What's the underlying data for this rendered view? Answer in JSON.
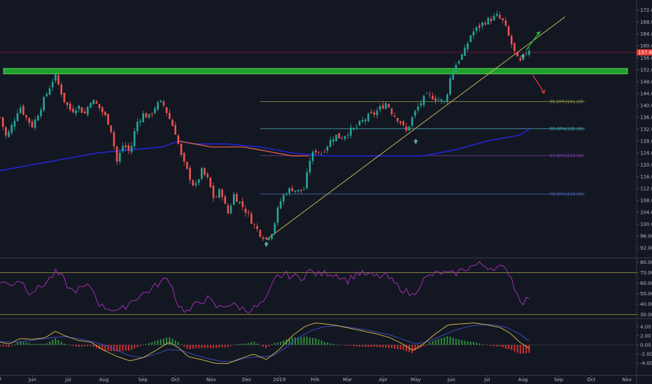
{
  "chart_data": {
    "type": "candlestick",
    "main_panel": {
      "price_ticks": [
        172.0,
        168.0,
        164.0,
        160.0,
        156.0,
        152.0,
        148.0,
        144.0,
        140.0,
        136.0,
        132.0,
        128.0,
        124.0,
        120.0,
        116.0,
        112.0,
        108.0,
        104.0,
        100.0,
        96.0,
        92.0
      ],
      "ylim": [
        89.0,
        174.5
      ],
      "last_price": "157.83",
      "last_price_value": 157.83,
      "support_zone": {
        "low": 150.6,
        "high": 152.4
      },
      "fib_levels": [
        {
          "label": "38.20%(141.23)",
          "value": 141.23,
          "color": "#9c9c4f"
        },
        {
          "label": "50.00%(132.16)",
          "value": 132.16,
          "color": "#4fb6c2"
        },
        {
          "label": "61.80%(123.08)",
          "value": 123.08,
          "color": "#7a3fb0"
        },
        {
          "label": "78.60%(110.16)",
          "value": 110.16,
          "color": "#4a64b8"
        }
      ],
      "trendline": {
        "start": {
          "t": 82,
          "price": 94.8
        },
        "end": {
          "t": 174,
          "price": 169.8
        }
      },
      "price_series": [
        [
          0,
          136
        ],
        [
          2,
          129
        ],
        [
          4,
          134
        ],
        [
          6,
          140
        ],
        [
          8,
          136
        ],
        [
          10,
          133
        ],
        [
          12,
          138
        ],
        [
          14,
          143
        ],
        [
          16,
          148
        ],
        [
          17,
          150
        ],
        [
          18,
          147
        ],
        [
          20,
          141
        ],
        [
          22,
          138
        ],
        [
          24,
          140
        ],
        [
          26,
          137
        ],
        [
          28,
          142
        ],
        [
          30,
          140
        ],
        [
          32,
          137
        ],
        [
          34,
          133
        ],
        [
          36,
          121
        ],
        [
          38,
          127
        ],
        [
          40,
          124
        ],
        [
          42,
          134
        ],
        [
          44,
          137
        ],
        [
          46,
          136
        ],
        [
          48,
          140
        ],
        [
          50,
          141
        ],
        [
          52,
          136
        ],
        [
          54,
          131
        ],
        [
          56,
          122
        ],
        [
          58,
          117
        ],
        [
          60,
          112
        ],
        [
          62,
          118
        ],
        [
          64,
          115
        ],
        [
          66,
          108
        ],
        [
          68,
          112
        ],
        [
          70,
          103
        ],
        [
          72,
          110
        ],
        [
          74,
          107
        ],
        [
          76,
          104
        ],
        [
          78,
          100
        ],
        [
          80,
          97
        ],
        [
          82,
          95
        ],
        [
          84,
          98
        ],
        [
          86,
          107
        ],
        [
          88,
          111
        ],
        [
          90,
          112
        ],
        [
          92,
          111
        ],
        [
          94,
          112
        ],
        [
          95,
          121
        ],
        [
          97,
          125
        ],
        [
          99,
          124
        ],
        [
          101,
          127
        ],
        [
          103,
          130
        ],
        [
          105,
          129
        ],
        [
          107,
          131
        ],
        [
          109,
          132
        ],
        [
          111,
          134
        ],
        [
          113,
          136
        ],
        [
          115,
          137
        ],
        [
          117,
          139
        ],
        [
          119,
          141
        ],
        [
          121,
          137
        ],
        [
          123,
          135
        ],
        [
          125,
          131
        ],
        [
          127,
          136
        ],
        [
          129,
          140
        ],
        [
          131,
          143
        ],
        [
          133,
          143
        ],
        [
          135,
          142
        ],
        [
          137,
          141
        ],
        [
          139,
          151
        ],
        [
          141,
          155
        ],
        [
          143,
          158
        ],
        [
          145,
          164
        ],
        [
          147,
          166
        ],
        [
          149,
          168
        ],
        [
          151,
          169
        ],
        [
          153,
          170
        ],
        [
          155,
          168
        ],
        [
          157,
          162
        ],
        [
          159,
          156
        ],
        [
          160,
          154
        ],
        [
          162,
          158
        ],
        [
          163,
          159
        ]
      ],
      "ma_red": [
        [
          55,
          128
        ],
        [
          60,
          127
        ],
        [
          65,
          126
        ],
        [
          70,
          126
        ],
        [
          75,
          126
        ],
        [
          80,
          125
        ],
        [
          85,
          124
        ],
        [
          90,
          123
        ],
        [
          95,
          123
        ]
      ],
      "ma_blue": [
        [
          0,
          118
        ],
        [
          10,
          120
        ],
        [
          20,
          122
        ],
        [
          30,
          124
        ],
        [
          40,
          125
        ],
        [
          50,
          126
        ],
        [
          55,
          128
        ],
        [
          60,
          127
        ],
        [
          70,
          127
        ],
        [
          80,
          126
        ],
        [
          90,
          124
        ],
        [
          100,
          123
        ],
        [
          110,
          123
        ],
        [
          120,
          123
        ],
        [
          130,
          123
        ],
        [
          140,
          125
        ],
        [
          150,
          128
        ],
        [
          160,
          130
        ],
        [
          163,
          132
        ]
      ],
      "markers": [
        {
          "t": 82,
          "price": 93.2,
          "kind": "up"
        },
        {
          "t": 128,
          "price": 127.8,
          "kind": "up"
        },
        {
          "t": 161,
          "price": 156.4,
          "kind": "up"
        }
      ]
    },
    "rsi_panel": {
      "ticks": [
        80.0,
        70.0,
        60.0,
        50.0,
        40.0,
        30.0
      ],
      "ylim": [
        27,
        83
      ],
      "upper_band": 70,
      "lower_band": 30,
      "series": [
        [
          0,
          62
        ],
        [
          3,
          58
        ],
        [
          6,
          64
        ],
        [
          9,
          52
        ],
        [
          12,
          55
        ],
        [
          15,
          63
        ],
        [
          17,
          70
        ],
        [
          19,
          66
        ],
        [
          22,
          52
        ],
        [
          25,
          55
        ],
        [
          28,
          57
        ],
        [
          31,
          38
        ],
        [
          34,
          36
        ],
        [
          37,
          33
        ],
        [
          40,
          42
        ],
        [
          43,
          48
        ],
        [
          46,
          53
        ],
        [
          49,
          60
        ],
        [
          52,
          65
        ],
        [
          55,
          38
        ],
        [
          58,
          32
        ],
        [
          61,
          42
        ],
        [
          64,
          45
        ],
        [
          67,
          36
        ],
        [
          70,
          40
        ],
        [
          73,
          38
        ],
        [
          76,
          34
        ],
        [
          79,
          37
        ],
        [
          82,
          44
        ],
        [
          85,
          66
        ],
        [
          88,
          68
        ],
        [
          91,
          66
        ],
        [
          93,
          65
        ],
        [
          95,
          72
        ],
        [
          98,
          68
        ],
        [
          101,
          70
        ],
        [
          104,
          68
        ],
        [
          107,
          62
        ],
        [
          110,
          70
        ],
        [
          113,
          68
        ],
        [
          116,
          66
        ],
        [
          119,
          67
        ],
        [
          122,
          58
        ],
        [
          125,
          52
        ],
        [
          127,
          48
        ],
        [
          130,
          62
        ],
        [
          133,
          68
        ],
        [
          136,
          70
        ],
        [
          139,
          68
        ],
        [
          142,
          72
        ],
        [
          145,
          76
        ],
        [
          148,
          78
        ],
        [
          151,
          75
        ],
        [
          154,
          75
        ],
        [
          157,
          70
        ],
        [
          159,
          50
        ],
        [
          161,
          42
        ],
        [
          163,
          47
        ]
      ]
    },
    "macd_panel": {
      "ticks": [
        4.0,
        2.0,
        0.0,
        -2.0,
        -4.0
      ],
      "ylim": [
        -5.5,
        5.5
      ],
      "macd": [
        [
          0,
          0.6
        ],
        [
          3,
          0.2
        ],
        [
          6,
          1.4
        ],
        [
          10,
          1.2
        ],
        [
          14,
          1.6
        ],
        [
          17,
          3.0
        ],
        [
          20,
          2.0
        ],
        [
          24,
          1.0
        ],
        [
          28,
          0.6
        ],
        [
          32,
          -1.2
        ],
        [
          36,
          -2.5
        ],
        [
          40,
          -3.5
        ],
        [
          44,
          -2.8
        ],
        [
          48,
          -1.2
        ],
        [
          52,
          0.6
        ],
        [
          55,
          -0.6
        ],
        [
          58,
          -2.6
        ],
        [
          62,
          -3.2
        ],
        [
          66,
          -4.0
        ],
        [
          70,
          -4.1
        ],
        [
          74,
          -3.0
        ],
        [
          78,
          -2.0
        ],
        [
          82,
          -3.2
        ],
        [
          86,
          -1.0
        ],
        [
          90,
          2.0
        ],
        [
          94,
          4.1
        ],
        [
          97,
          4.8
        ],
        [
          100,
          4.6
        ],
        [
          104,
          4.2
        ],
        [
          108,
          3.6
        ],
        [
          112,
          3.0
        ],
        [
          116,
          2.4
        ],
        [
          120,
          1.6
        ],
        [
          124,
          0.2
        ],
        [
          127,
          -1.2
        ],
        [
          130,
          0.0
        ],
        [
          134,
          2.4
        ],
        [
          138,
          4.4
        ],
        [
          142,
          4.6
        ],
        [
          146,
          4.8
        ],
        [
          150,
          4.4
        ],
        [
          154,
          3.8
        ],
        [
          157,
          2.6
        ],
        [
          160,
          0.6
        ],
        [
          163,
          -0.8
        ]
      ],
      "signal": [
        [
          0,
          0.8
        ],
        [
          4,
          0.6
        ],
        [
          8,
          0.8
        ],
        [
          12,
          1.2
        ],
        [
          16,
          1.6
        ],
        [
          20,
          1.8
        ],
        [
          24,
          1.4
        ],
        [
          28,
          0.8
        ],
        [
          32,
          0.0
        ],
        [
          36,
          -1.2
        ],
        [
          40,
          -2.4
        ],
        [
          44,
          -2.8
        ],
        [
          48,
          -2.0
        ],
        [
          52,
          -1.0
        ],
        [
          56,
          -1.2
        ],
        [
          60,
          -2.2
        ],
        [
          64,
          -3.0
        ],
        [
          68,
          -3.6
        ],
        [
          72,
          -3.6
        ],
        [
          76,
          -2.8
        ],
        [
          80,
          -2.6
        ],
        [
          84,
          -2.4
        ],
        [
          88,
          -0.6
        ],
        [
          92,
          1.6
        ],
        [
          96,
          3.2
        ],
        [
          100,
          4.0
        ],
        [
          104,
          4.2
        ],
        [
          108,
          3.8
        ],
        [
          112,
          3.4
        ],
        [
          116,
          2.8
        ],
        [
          120,
          2.2
        ],
        [
          124,
          1.2
        ],
        [
          128,
          0.2
        ],
        [
          132,
          0.8
        ],
        [
          136,
          2.0
        ],
        [
          140,
          3.2
        ],
        [
          144,
          4.0
        ],
        [
          148,
          4.4
        ],
        [
          152,
          4.4
        ],
        [
          156,
          3.8
        ],
        [
          160,
          2.4
        ],
        [
          163,
          0.8
        ]
      ]
    },
    "x_ticks": [
      {
        "label": "7",
        "t": 0
      },
      {
        "label": "Jun",
        "t": 10
      },
      {
        "label": "Jul",
        "t": 21
      },
      {
        "label": "Aug",
        "t": 32
      },
      {
        "label": "Sep",
        "t": 44
      },
      {
        "label": "Oct",
        "t": 54
      },
      {
        "label": "Nov",
        "t": 65
      },
      {
        "label": "Dec",
        "t": 76
      },
      {
        "label": "2019",
        "t": 86
      },
      {
        "label": "Feb",
        "t": 97
      },
      {
        "label": "Mar",
        "t": 107
      },
      {
        "label": "Apr",
        "t": 118
      },
      {
        "label": "May",
        "t": 128
      },
      {
        "label": "Jun",
        "t": 139
      },
      {
        "label": "Jul",
        "t": 150
      },
      {
        "label": "Aug",
        "t": 161
      },
      {
        "label": "Sep",
        "t": 172
      },
      {
        "label": "Oct",
        "t": 182
      },
      {
        "label": "Nov",
        "t": 193
      }
    ],
    "t_range": [
      0,
      196
    ]
  }
}
